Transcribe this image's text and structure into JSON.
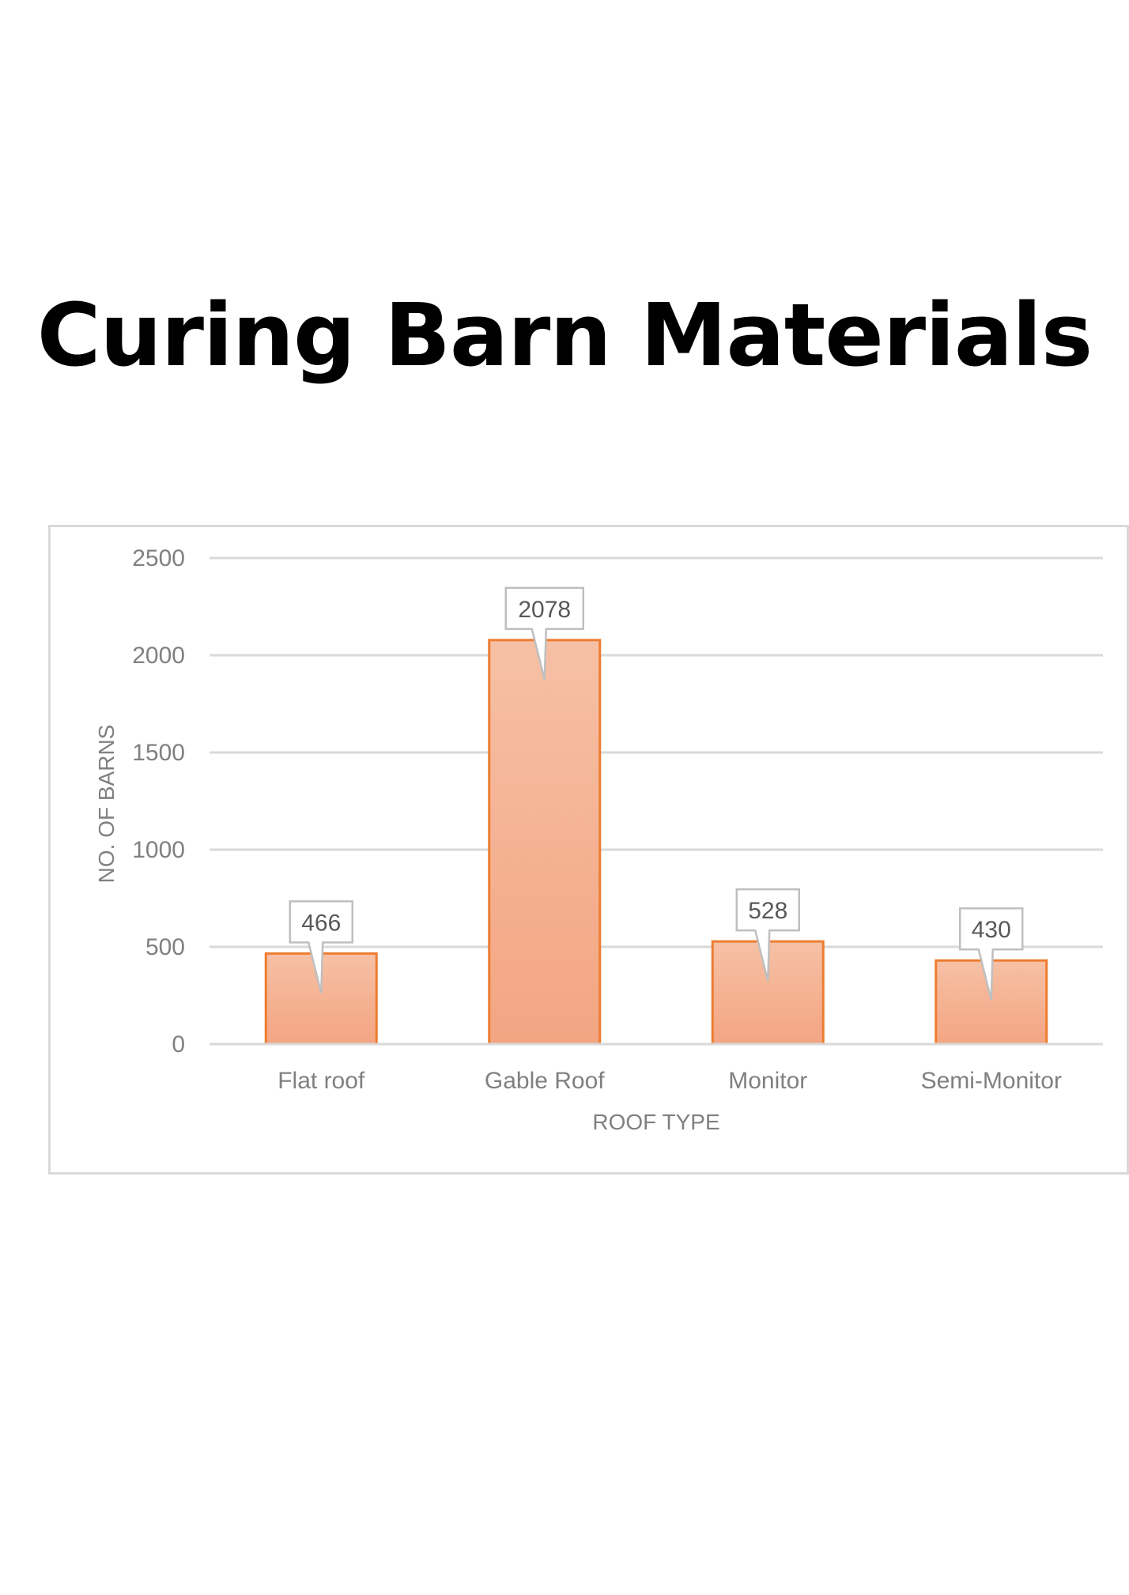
{
  "page": {
    "title": "Curing Barn Materials"
  },
  "chart_data": {
    "type": "bar",
    "title": "",
    "categories": [
      "Flat roof",
      "Gable Roof",
      "Monitor",
      "Semi-Monitor"
    ],
    "values": [
      466,
      2078,
      528,
      430
    ],
    "xlabel": "ROOF TYPE",
    "ylabel": "NO. OF BARNS",
    "ylim": [
      0,
      2500
    ],
    "yticks": [
      0,
      500,
      1000,
      1500,
      2000,
      2500
    ],
    "grid": true,
    "legend": "none",
    "data_labels": true,
    "colors": {
      "bar_fill_top": "#f6c0a5",
      "bar_fill_bottom": "#f3a582",
      "bar_stroke": "#ed7d31",
      "grid": "#d9d9d9",
      "text": "#808080"
    }
  }
}
